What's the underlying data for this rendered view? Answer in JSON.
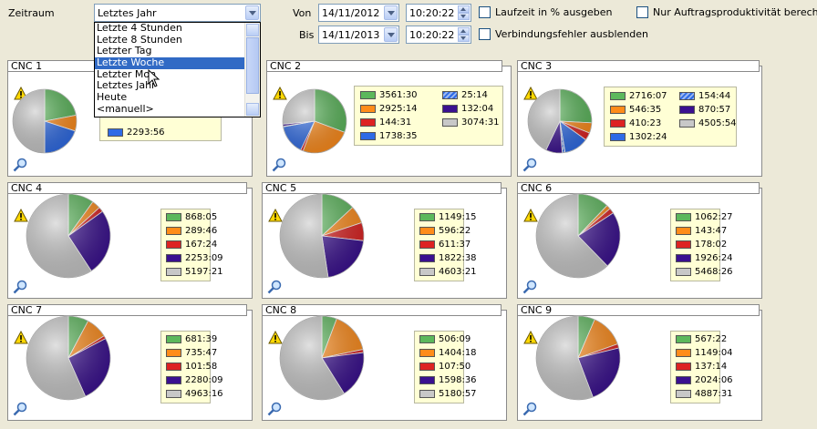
{
  "toolbar": {
    "zeitraum_label": "Zeitraum",
    "zeitraum_value": "Letztes Jahr",
    "von_label": "Von",
    "bis_label": "Bis",
    "von_date": "14/11/2012",
    "von_time": "10:20:22",
    "bis_date": "14/11/2013",
    "bis_time": "10:20:22",
    "check_laufzeit": "Laufzeit in % ausgeben",
    "check_verbindung": "Verbindungsfehler ausblenden",
    "check_nur": "Nur Auftragsproduktivität berechnen"
  },
  "dropdown": {
    "items": [
      "Letzte 4 Stunden",
      "Letzte 8 Stunden",
      "Letzter Tag",
      "Letzte Woche",
      "Letzter Monat",
      "Letztes Jahr",
      "Heute",
      "<manuell>"
    ],
    "visible_items": [
      "Letzte 4 Stunden",
      "Letzte 8 Stunden",
      "Letzter Tag",
      "Letzte Woche",
      "Letzter Mon",
      "Letztes Jahr",
      "Heute",
      "<manuell>"
    ],
    "selected_index": 3
  },
  "colors": {
    "green": "#5cb85c",
    "orange": "#ff8c1a",
    "red": "#dd2222",
    "purple": "#3a1090",
    "gray": "#c8c8c8",
    "blue": "#2e6be6",
    "hatched_blue": "#5a8ae0"
  },
  "panels": [
    {
      "title": "CNC 1",
      "legend": [
        {
          "color": "blue",
          "value": "2293:56"
        }
      ],
      "pie": [
        {
          "color": "green",
          "value": 22
        },
        {
          "color": "orange",
          "value": 8
        },
        {
          "color": "blue",
          "value": 20
        },
        {
          "color": "gray",
          "value": 50
        }
      ]
    },
    {
      "title": "CNC 2",
      "legend": [
        {
          "color": "green",
          "value": "3561:30"
        },
        {
          "color": "orange",
          "value": "2925:14"
        },
        {
          "color": "red",
          "value": "144:31"
        },
        {
          "color": "blue",
          "value": "1738:35"
        },
        {
          "color": "hatched_blue",
          "value": "25:14"
        },
        {
          "color": "purple",
          "value": "132:04"
        },
        {
          "color": "gray",
          "value": "3074:31"
        }
      ],
      "pie": [
        {
          "color": "green",
          "value": 3561.5
        },
        {
          "color": "orange",
          "value": 2925.2
        },
        {
          "color": "red",
          "value": 144.5
        },
        {
          "color": "blue",
          "value": 1738.6
        },
        {
          "color": "hatched_blue",
          "value": 25.2
        },
        {
          "color": "purple",
          "value": 132.1
        },
        {
          "color": "gray",
          "value": 3074.5
        }
      ]
    },
    {
      "title": "CNC 3",
      "legend": [
        {
          "color": "green",
          "value": "2716:07"
        },
        {
          "color": "orange",
          "value": "546:35"
        },
        {
          "color": "red",
          "value": "410:23"
        },
        {
          "color": "blue",
          "value": "1302:24"
        },
        {
          "color": "hatched_blue",
          "value": "154:44"
        },
        {
          "color": "purple",
          "value": "870:57"
        },
        {
          "color": "gray",
          "value": "4505:54"
        }
      ],
      "pie": [
        {
          "color": "green",
          "value": 2716.1
        },
        {
          "color": "orange",
          "value": 546.6
        },
        {
          "color": "red",
          "value": 410.4
        },
        {
          "color": "blue",
          "value": 1302.4
        },
        {
          "color": "hatched_blue",
          "value": 154.7
        },
        {
          "color": "purple",
          "value": 871
        },
        {
          "color": "gray",
          "value": 4505.9
        }
      ]
    },
    {
      "title": "CNC 4",
      "legend": [
        {
          "color": "green",
          "value": "868:05"
        },
        {
          "color": "orange",
          "value": "289:46"
        },
        {
          "color": "red",
          "value": "167:24"
        },
        {
          "color": "purple",
          "value": "2253:09"
        },
        {
          "color": "gray",
          "value": "5197:21"
        }
      ],
      "pie": [
        {
          "color": "green",
          "value": 868.1
        },
        {
          "color": "orange",
          "value": 289.8
        },
        {
          "color": "red",
          "value": 167.4
        },
        {
          "color": "purple",
          "value": 2253.2
        },
        {
          "color": "gray",
          "value": 5197.4
        }
      ]
    },
    {
      "title": "CNC 5",
      "legend": [
        {
          "color": "green",
          "value": "1149:15"
        },
        {
          "color": "orange",
          "value": "596:22"
        },
        {
          "color": "red",
          "value": "611:37"
        },
        {
          "color": "purple",
          "value": "1822:38"
        },
        {
          "color": "gray",
          "value": "4603:21"
        }
      ],
      "pie": [
        {
          "color": "green",
          "value": 1149.3
        },
        {
          "color": "orange",
          "value": 596.4
        },
        {
          "color": "red",
          "value": 611.6
        },
        {
          "color": "purple",
          "value": 1822.6
        },
        {
          "color": "gray",
          "value": 4603.4
        }
      ]
    },
    {
      "title": "CNC 6",
      "legend": [
        {
          "color": "green",
          "value": "1062:27"
        },
        {
          "color": "orange",
          "value": "143:47"
        },
        {
          "color": "red",
          "value": "178:02"
        },
        {
          "color": "purple",
          "value": "1926:24"
        },
        {
          "color": "gray",
          "value": "5468:26"
        }
      ],
      "pie": [
        {
          "color": "green",
          "value": 1062.5
        },
        {
          "color": "orange",
          "value": 143.8
        },
        {
          "color": "red",
          "value": 178
        },
        {
          "color": "purple",
          "value": 1926.4
        },
        {
          "color": "gray",
          "value": 5468.4
        }
      ]
    },
    {
      "title": "CNC 7",
      "legend": [
        {
          "color": "green",
          "value": "681:39"
        },
        {
          "color": "orange",
          "value": "735:47"
        },
        {
          "color": "red",
          "value": "101:58"
        },
        {
          "color": "purple",
          "value": "2280:09"
        },
        {
          "color": "gray",
          "value": "4963:16"
        }
      ],
      "pie": [
        {
          "color": "green",
          "value": 681.7
        },
        {
          "color": "orange",
          "value": 735.8
        },
        {
          "color": "red",
          "value": 102
        },
        {
          "color": "purple",
          "value": 2280.2
        },
        {
          "color": "gray",
          "value": 4963.3
        }
      ]
    },
    {
      "title": "CNC 8",
      "legend": [
        {
          "color": "green",
          "value": "506:09"
        },
        {
          "color": "orange",
          "value": "1404:18"
        },
        {
          "color": "red",
          "value": "107:50"
        },
        {
          "color": "purple",
          "value": "1598:36"
        },
        {
          "color": "gray",
          "value": "5180:57"
        }
      ],
      "pie": [
        {
          "color": "green",
          "value": 506.2
        },
        {
          "color": "orange",
          "value": 1404.3
        },
        {
          "color": "red",
          "value": 107.8
        },
        {
          "color": "purple",
          "value": 1598.6
        },
        {
          "color": "gray",
          "value": 5181
        }
      ]
    },
    {
      "title": "CNC 9",
      "legend": [
        {
          "color": "green",
          "value": "567:22"
        },
        {
          "color": "orange",
          "value": "1149:04"
        },
        {
          "color": "red",
          "value": "137:14"
        },
        {
          "color": "purple",
          "value": "2024:06"
        },
        {
          "color": "gray",
          "value": "4887:31"
        }
      ],
      "pie": [
        {
          "color": "green",
          "value": 567.4
        },
        {
          "color": "orange",
          "value": 1149.1
        },
        {
          "color": "red",
          "value": 137.2
        },
        {
          "color": "purple",
          "value": 2024.1
        },
        {
          "color": "gray",
          "value": 4887.5
        }
      ]
    }
  ]
}
